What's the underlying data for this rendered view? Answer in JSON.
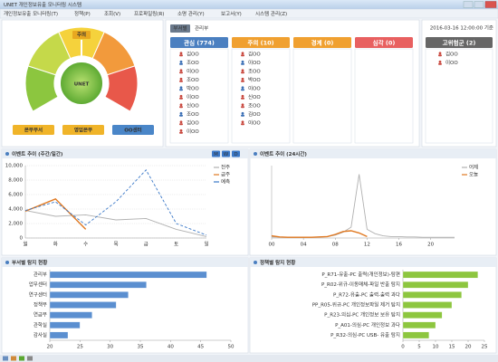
{
  "window": {
    "title": "UNET 개인정보유출 모니터링 시스템"
  },
  "menu": [
    "개인정보유출 모니터링(T)",
    "정책(P)",
    "조회(V)",
    "프로파일링(R)",
    "소명 관리(Y)",
    "보고서(Y)",
    "시스템 관리(Z)"
  ],
  "gauge": {
    "label": "주의",
    "logo": "UNET",
    "buttons": [
      "본부부서",
      "영업본부",
      "OO센터"
    ]
  },
  "dept": {
    "label": "부서별",
    "value": "관리부"
  },
  "levels": [
    {
      "title": "관심 (774)",
      "people": [
        "김OO",
        "조OO",
        "이OO",
        "조OO",
        "박OO",
        "이OO",
        "신OO",
        "조OO",
        "김OO",
        "이OO"
      ]
    },
    {
      "title": "주의 (10)",
      "people": [
        "김OO",
        "이OO",
        "조OO",
        "박OO",
        "이OO",
        "신OO",
        "조OO",
        "김OO",
        "이OO"
      ]
    },
    {
      "title": "경계 (0)",
      "people": []
    },
    {
      "title": "심각 (0)",
      "people": []
    }
  ],
  "high_risk": {
    "timestamp": "2016-03-16 12:00:00 기준",
    "title": "고위험군 (2)",
    "people": [
      "김OO",
      "이OO"
    ]
  },
  "chart_data": [
    {
      "type": "line",
      "title": "이벤트 추이 (주간/일간)",
      "buttons": [
        "M",
        "W",
        "D"
      ],
      "categories": [
        "월",
        "화",
        "수",
        "목",
        "금",
        "토",
        "일"
      ],
      "series": [
        {
          "name": "전주",
          "color": "#b0b0b0",
          "values": [
            3800,
            3000,
            3200,
            2500,
            2700,
            1200,
            200
          ]
        },
        {
          "name": "금주",
          "color": "#e07820",
          "values": [
            3700,
            5400,
            1200,
            null,
            null,
            null,
            null
          ]
        },
        {
          "name": "예측",
          "color": "#3a78c8",
          "dashed": true,
          "values": [
            3800,
            5000,
            1800,
            5000,
            9400,
            2000,
            400
          ]
        }
      ],
      "ylim": [
        0,
        10000
      ],
      "yticks": [
        0,
        {
          "value": 2000,
          "label": "2,000"
        },
        {
          "value": 4000,
          "label": "4,000"
        },
        {
          "value": 6000,
          "label": "6,000"
        },
        {
          "value": 8000,
          "label": "8,000"
        },
        {
          "value": 10000,
          "label": "10,000"
        }
      ],
      "grid": true
    },
    {
      "type": "line",
      "title": "이벤트 추이 (24시간)",
      "x": [
        0,
        1,
        2,
        3,
        4,
        5,
        6,
        7,
        8,
        9,
        10,
        11,
        12,
        13,
        14,
        15,
        16,
        17,
        18,
        19,
        20,
        21,
        22,
        23
      ],
      "series": [
        {
          "name": "어제",
          "color": "#b0b0b0",
          "values": [
            150,
            120,
            100,
            100,
            100,
            100,
            150,
            200,
            400,
            800,
            1500,
            8800,
            1200,
            600,
            300,
            200,
            200,
            150,
            150,
            100,
            100,
            100,
            100,
            100
          ]
        },
        {
          "name": "오늘",
          "color": "#e07820",
          "values": [
            300,
            150,
            100,
            100,
            100,
            100,
            150,
            200,
            500,
            900,
            1000,
            700,
            200,
            null,
            null,
            null,
            null,
            null,
            null,
            null,
            null,
            null,
            null,
            null
          ]
        }
      ],
      "xlim": [
        0,
        23
      ],
      "xticks": [
        {
          "value": 0,
          "label": "00"
        },
        {
          "value": 4,
          "label": "04"
        },
        {
          "value": 8,
          "label": "08"
        },
        12,
        16,
        20
      ],
      "ylim": [
        0,
        10000
      ]
    },
    {
      "type": "hbar",
      "title": "부서별 탐지 현황",
      "color": "#5b8fd0",
      "categories": [
        "관리부",
        "업무센터",
        "연구센터",
        "정책부",
        "연금부",
        "관학실",
        "감사실"
      ],
      "values": [
        46,
        36,
        33,
        31,
        27,
        25,
        23
      ],
      "xlim": [
        20,
        50
      ],
      "xticks": [
        20,
        25,
        30,
        35,
        40,
        45,
        50
      ]
    },
    {
      "type": "hbar",
      "title": "정책별 탐지 현황",
      "color": "#8dc63f",
      "categories": [
        "P_R71-유출-PC 출력(개인정보)-탐편",
        "P_R02-위규-이동매체-파일 반출 탐지",
        "P_R72-유출-PC 출력-출력 과다",
        "PP_R05-위규-PC 개인정보파일 제거 탐지",
        "P_R23-의심-PC 개인정보 보유 탐지",
        "P_A01-의심-PC 개인정보 과다",
        "P_R32-의심-PC USB- 유출 탐지"
      ],
      "values": [
        23,
        20,
        18,
        15,
        12,
        10,
        8
      ],
      "xlim": [
        0,
        25
      ],
      "xticks": [
        0,
        5,
        10,
        15,
        20,
        25
      ]
    }
  ]
}
